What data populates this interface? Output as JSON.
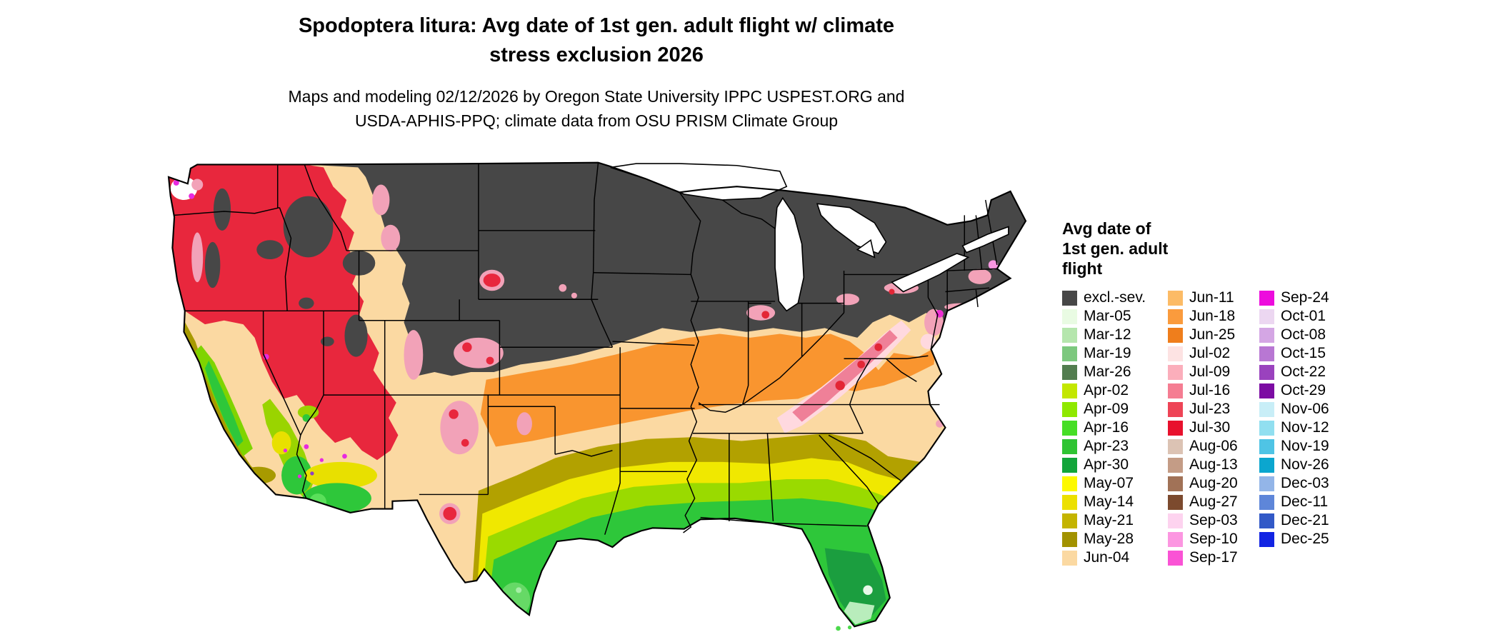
{
  "title": {
    "line1": "Spodoptera litura: Avg date of 1st gen. adult flight w/ climate",
    "line2": "stress exclusion 2026"
  },
  "subtitle": {
    "line1": "Maps and modeling 02/12/2026 by Oregon State University IPPC USPEST.ORG and",
    "line2": "USDA-APHIS-PPQ; climate data from OSU PRISM Climate Group"
  },
  "map": {
    "kind": "choropleth",
    "area": "contiguous United States",
    "excluded_color": "#474747"
  },
  "legend": {
    "title_line1": "Avg date of",
    "title_line2": "1st gen. adult",
    "title_line3": "flight",
    "columns": [
      {
        "entries": [
          {
            "label": "excl.-sev.",
            "color": "#474747"
          },
          {
            "label": "Mar-05",
            "color": "#e9fbe3"
          },
          {
            "label": "Mar-12",
            "color": "#b5e6ad"
          },
          {
            "label": "Mar-19",
            "color": "#7cc87e"
          },
          {
            "label": "Mar-26",
            "color": "#527d4f"
          },
          {
            "label": "Apr-02",
            "color": "#c3e700"
          },
          {
            "label": "Apr-09",
            "color": "#8fe800"
          },
          {
            "label": "Apr-16",
            "color": "#46de26"
          },
          {
            "label": "Apr-23",
            "color": "#2fc433"
          },
          {
            "label": "Apr-30",
            "color": "#12a53a"
          },
          {
            "label": "May-07",
            "color": "#fdf900"
          },
          {
            "label": "May-14",
            "color": "#ece000"
          },
          {
            "label": "May-21",
            "color": "#c4b400"
          },
          {
            "label": "May-28",
            "color": "#a29200"
          },
          {
            "label": "Jun-04",
            "color": "#fbd9a2"
          }
        ]
      },
      {
        "entries": [
          {
            "label": "Jun-11",
            "color": "#fcbb66"
          },
          {
            "label": "Jun-18",
            "color": "#fa9b3d"
          },
          {
            "label": "Jun-25",
            "color": "#ef7e1c"
          },
          {
            "label": "Jul-02",
            "color": "#fde3e3"
          },
          {
            "label": "Jul-09",
            "color": "#fbaebb"
          },
          {
            "label": "Jul-16",
            "color": "#f57d92"
          },
          {
            "label": "Jul-23",
            "color": "#ee4456"
          },
          {
            "label": "Jul-30",
            "color": "#e8112d"
          },
          {
            "label": "Aug-06",
            "color": "#dcc3b4"
          },
          {
            "label": "Aug-13",
            "color": "#c49c86"
          },
          {
            "label": "Aug-20",
            "color": "#a17257"
          },
          {
            "label": "Aug-27",
            "color": "#7c4a2e"
          },
          {
            "label": "Sep-03",
            "color": "#fdd3ef"
          },
          {
            "label": "Sep-10",
            "color": "#fc96e1"
          },
          {
            "label": "Sep-17",
            "color": "#fa53d5"
          }
        ]
      },
      {
        "entries": [
          {
            "label": "Sep-24",
            "color": "#ed0cdd"
          },
          {
            "label": "Oct-01",
            "color": "#ecd7f1"
          },
          {
            "label": "Oct-08",
            "color": "#d4a6e4"
          },
          {
            "label": "Oct-15",
            "color": "#b877d3"
          },
          {
            "label": "Oct-22",
            "color": "#9a42be"
          },
          {
            "label": "Oct-29",
            "color": "#7c0ca3"
          },
          {
            "label": "Nov-06",
            "color": "#c8eef7"
          },
          {
            "label": "Nov-12",
            "color": "#91dff0"
          },
          {
            "label": "Nov-19",
            "color": "#4fc4e5"
          },
          {
            "label": "Nov-26",
            "color": "#0ba6cf"
          },
          {
            "label": "Dec-03",
            "color": "#93b5e8"
          },
          {
            "label": "Dec-11",
            "color": "#5e86d9"
          },
          {
            "label": "Dec-21",
            "color": "#3259c7"
          },
          {
            "label": "Dec-25",
            "color": "#1224e3"
          }
        ]
      }
    ]
  }
}
